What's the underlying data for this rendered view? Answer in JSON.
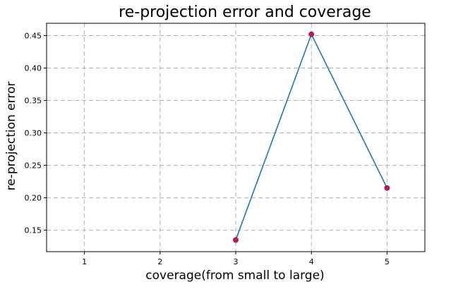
{
  "chart_data": {
    "type": "line",
    "title": "re-projection error and coverage",
    "xlabel": "coverage(from small to large)",
    "ylabel": "re-projection error",
    "x": [
      3,
      4,
      5
    ],
    "series": [
      {
        "values": [
          0.135,
          0.452,
          0.215
        ],
        "line_color": "#1f77b4",
        "marker_color": "#c2185b"
      }
    ],
    "xlim": [
      0.5,
      5.5
    ],
    "ylim": [
      0.117,
      0.469
    ],
    "xticks": [
      1,
      2,
      3,
      4,
      5
    ],
    "xtick_labels": [
      "1",
      "2",
      "3",
      "4",
      "5"
    ],
    "yticks": [
      0.15,
      0.2,
      0.25,
      0.3,
      0.35,
      0.4,
      0.45
    ],
    "ytick_labels": [
      "0.15",
      "0.20",
      "0.25",
      "0.30",
      "0.35",
      "0.40",
      "0.45"
    ],
    "grid": true,
    "legend": "none"
  }
}
